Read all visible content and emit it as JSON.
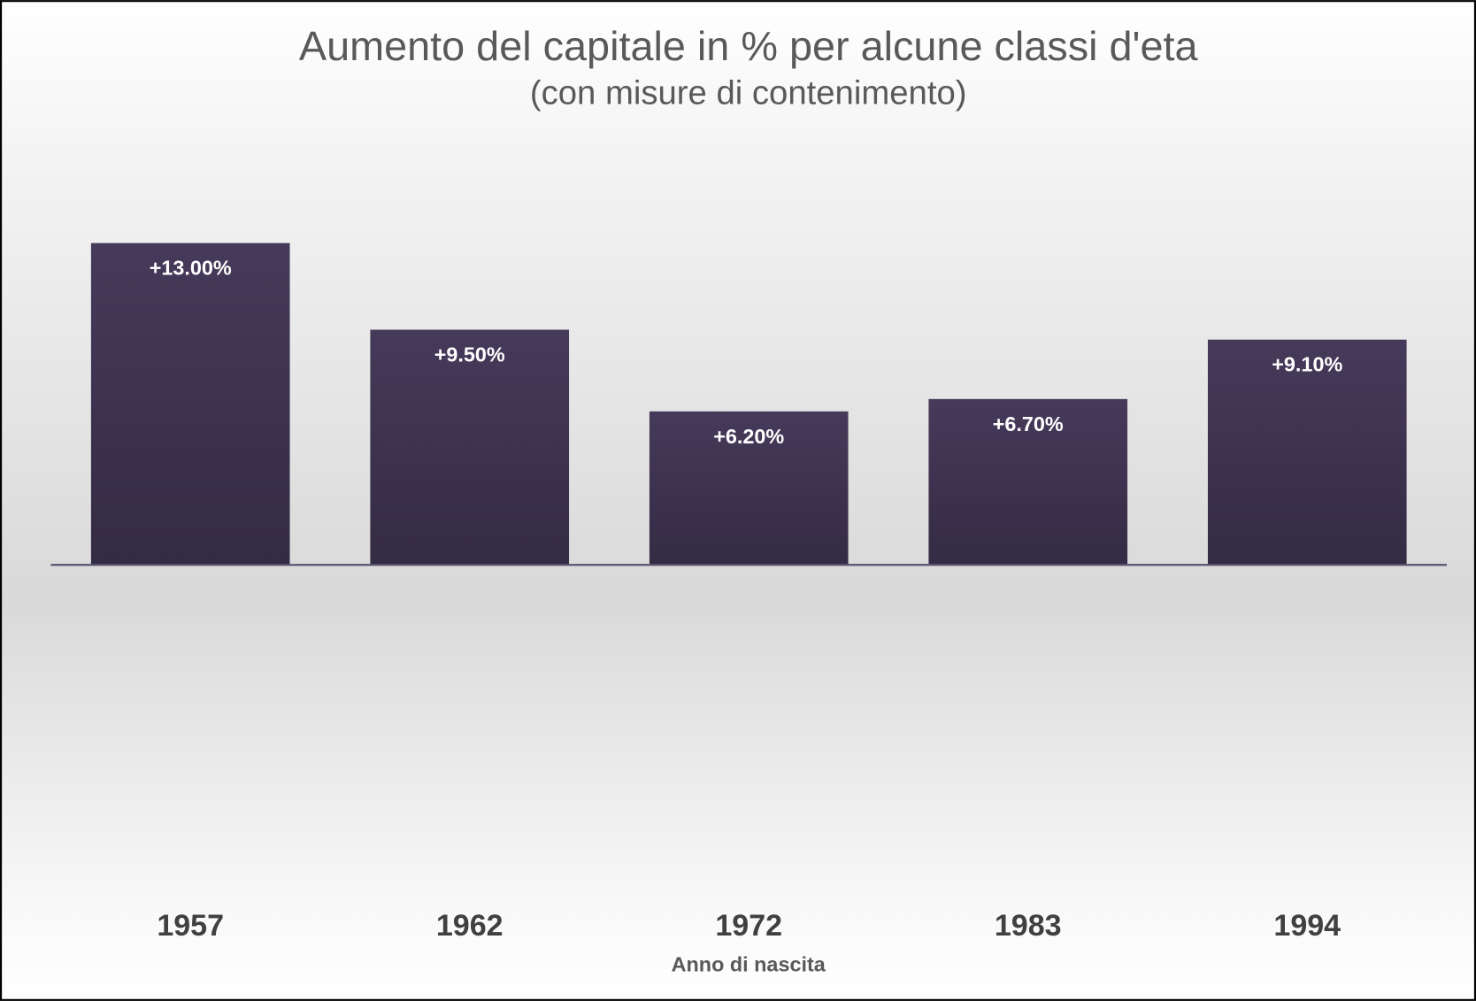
{
  "chart_data": {
    "type": "bar",
    "title": "Aumento del capitale in % per alcune classi d'eta",
    "subtitle": "(con misure di contenimento)",
    "x_label": "Anno di nascita",
    "categories": [
      "1957",
      "1962",
      "1972",
      "1983",
      "1994"
    ],
    "values": [
      13.0,
      9.5,
      6.2,
      6.7,
      9.1
    ],
    "value_labels": [
      "+13.00%",
      "+9.50%",
      "+6.20%",
      "+6.70%",
      "+9.10%"
    ],
    "color": "#41364f",
    "ylim": [
      -14,
      18
    ]
  }
}
